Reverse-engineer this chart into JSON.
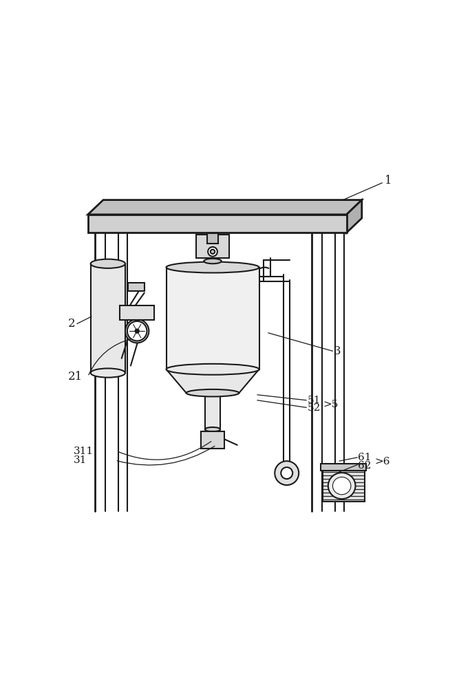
{
  "bg_color": "#ffffff",
  "line_color": "#1a1a1a",
  "label_color": "#1a1a1a",
  "line_width": 1.5,
  "thin_line": 0.8,
  "thick_line": 2.0,
  "fig_width": 6.83,
  "fig_height": 10.0
}
